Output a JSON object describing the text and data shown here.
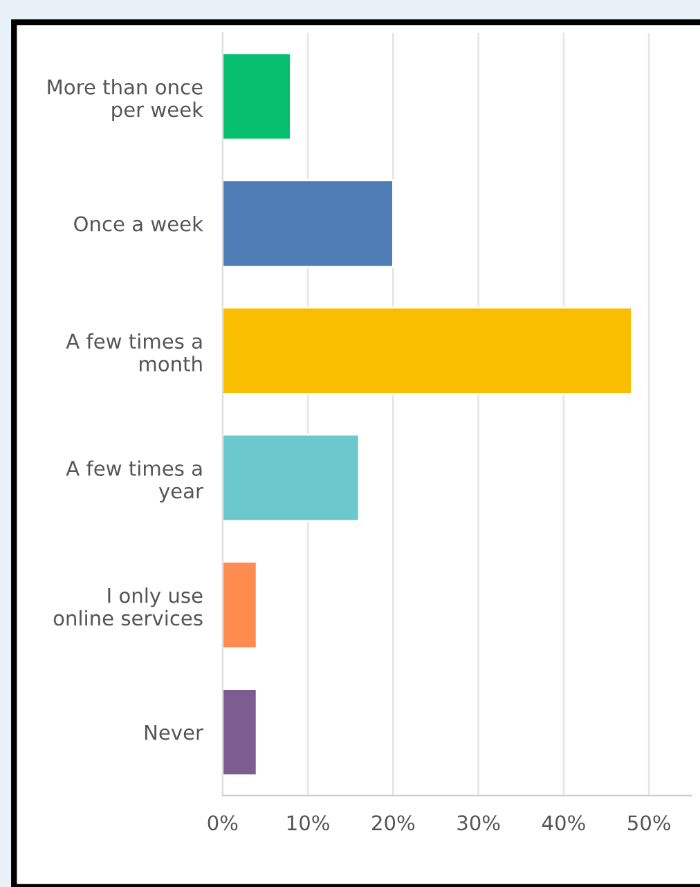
{
  "chart_data": {
    "type": "bar",
    "orientation": "horizontal",
    "categories": [
      "More than once\nper week",
      "Once a week",
      "A few times a\nmonth",
      "A few times a\nyear",
      "I only use\nonline services",
      "Never"
    ],
    "values": [
      8,
      20,
      48,
      16,
      4,
      4
    ],
    "colors": [
      "#05bf6e",
      "#507cb6",
      "#f9be00",
      "#6bc8cd",
      "#ff8b4f",
      "#7d5c91"
    ],
    "xlim": [
      0,
      55
    ],
    "xticks": [
      {
        "value": 0,
        "label": "0%"
      },
      {
        "value": 10,
        "label": "10%"
      },
      {
        "value": 20,
        "label": "20%"
      },
      {
        "value": 30,
        "label": "30%"
      },
      {
        "value": 40,
        "label": "40%"
      },
      {
        "value": 50,
        "label": "50%"
      }
    ],
    "grid": "x",
    "legend": false
  }
}
